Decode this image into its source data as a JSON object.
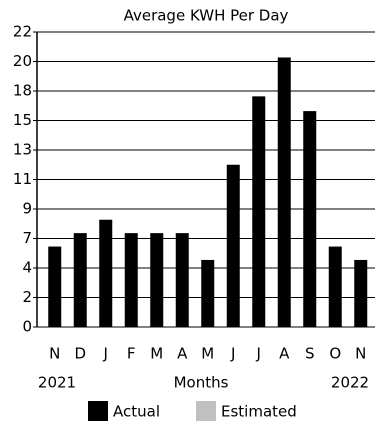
{
  "chart_data": {
    "type": "bar",
    "title": "Average KWH Per Day",
    "x_label": "Months",
    "x_start_label": "2021",
    "x_end_label": "2022",
    "categories": [
      "N",
      "D",
      "J",
      "F",
      "M",
      "A",
      "M",
      "J",
      "J",
      "A",
      "S",
      "O",
      "N"
    ],
    "series": [
      {
        "name": "Actual",
        "color": "#000000",
        "values": [
          6.0,
          7.0,
          8.0,
          7.0,
          7.0,
          7.0,
          5.0,
          12.1,
          17.2,
          20.1,
          16.1,
          6.0,
          5.0
        ]
      },
      {
        "name": "Estimated",
        "color": "#c0c0c0",
        "values": [
          null,
          null,
          null,
          null,
          null,
          null,
          null,
          null,
          null,
          null,
          null,
          null,
          null
        ]
      }
    ],
    "ylim": [
      0,
      22
    ],
    "yticks": [
      0,
      {
        "value": 2.2,
        "label": "2"
      },
      {
        "value": 4.4,
        "label": "4"
      },
      {
        "value": 6.6,
        "label": "7"
      },
      {
        "value": 8.8,
        "label": "9"
      },
      11,
      {
        "value": 13.2,
        "label": "13"
      },
      {
        "value": 15.4,
        "label": "15"
      },
      {
        "value": 17.6,
        "label": "18"
      },
      {
        "value": 19.8,
        "label": "20"
      },
      22
    ],
    "grid": true
  }
}
